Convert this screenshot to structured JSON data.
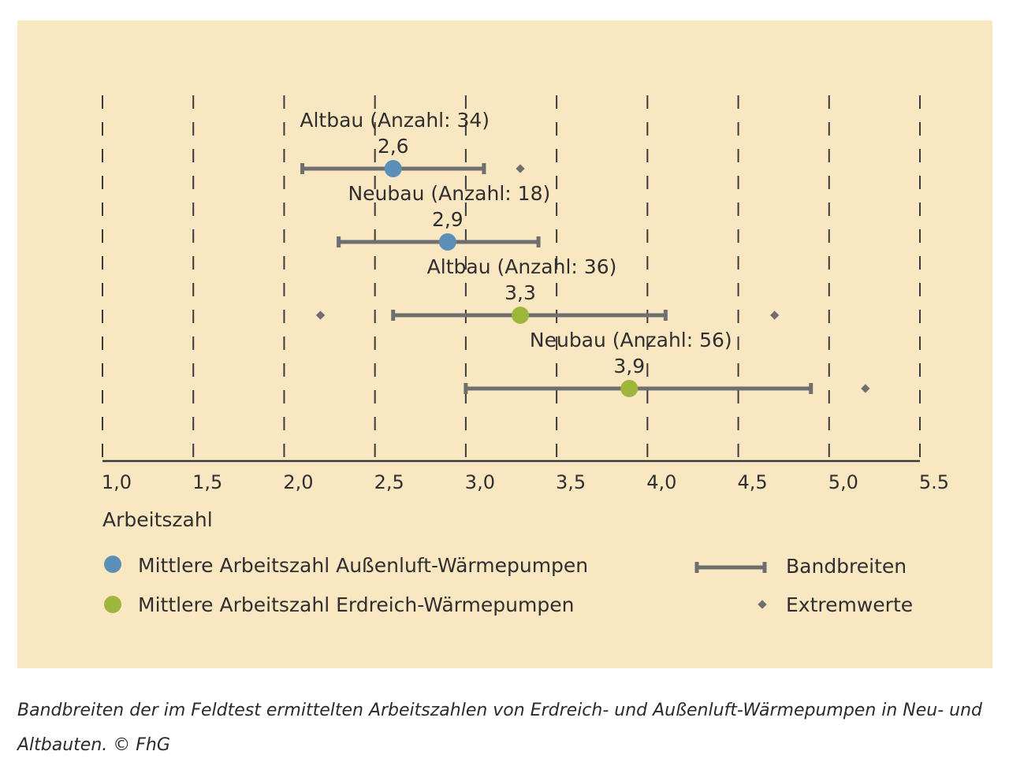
{
  "chart_data": {
    "type": "scatter",
    "xlabel": "Arbeitszahl",
    "xlim": [
      1.0,
      5.5
    ],
    "x_ticks": [
      "1,0",
      "1,5",
      "2,0",
      "2,5",
      "3,0",
      "3,5",
      "4,0",
      "4,5",
      "5,0",
      "5.5"
    ],
    "x_tick_values": [
      1.0,
      1.5,
      2.0,
      2.5,
      3.0,
      3.5,
      4.0,
      4.5,
      5.0,
      5.5
    ],
    "grid": "vertical dashed",
    "rows": [
      {
        "label": "Altbau (Anzahl: 34)",
        "mean": 2.6,
        "mean_label": "2,6",
        "range": [
          2.1,
          3.1
        ],
        "extremes": [
          3.3
        ],
        "category": "aussenluft"
      },
      {
        "label": "Neubau (Anzahl: 18)",
        "mean": 2.9,
        "mean_label": "2,9",
        "range": [
          2.3,
          3.4
        ],
        "extremes": [],
        "category": "aussenluft"
      },
      {
        "label": "Altbau (Anzahl: 36)",
        "mean": 3.3,
        "mean_label": "3,3",
        "range": [
          2.6,
          4.1
        ],
        "extremes": [
          2.2,
          4.7
        ],
        "category": "erdreich"
      },
      {
        "label": "Neubau (Anzahl: 56)",
        "mean": 3.9,
        "mean_label": "3,9",
        "range": [
          3.0,
          4.9
        ],
        "extremes": [
          5.2
        ],
        "category": "erdreich"
      }
    ],
    "legend": {
      "aussenluft": {
        "label": "Mittlere Arbeitszahl Außenluft-Wärmepumpen",
        "color": "#5b8fb8"
      },
      "erdreich": {
        "label": "Mittlere Arbeitszahl Erdreich-Wärmepumpen",
        "color": "#9db63b"
      },
      "bandbreiten": {
        "label": "Bandbreiten",
        "color": "#6f6f6f"
      },
      "extremwerte": {
        "label": "Extremwerte",
        "color": "#6f6f6f"
      }
    }
  },
  "caption": "Bandbreiten der im Feldtest ermittelten Arbeitszahlen von Erdreich- und Außenluft-Wärmepumpen in Neu- und Altbauten. © FhG"
}
